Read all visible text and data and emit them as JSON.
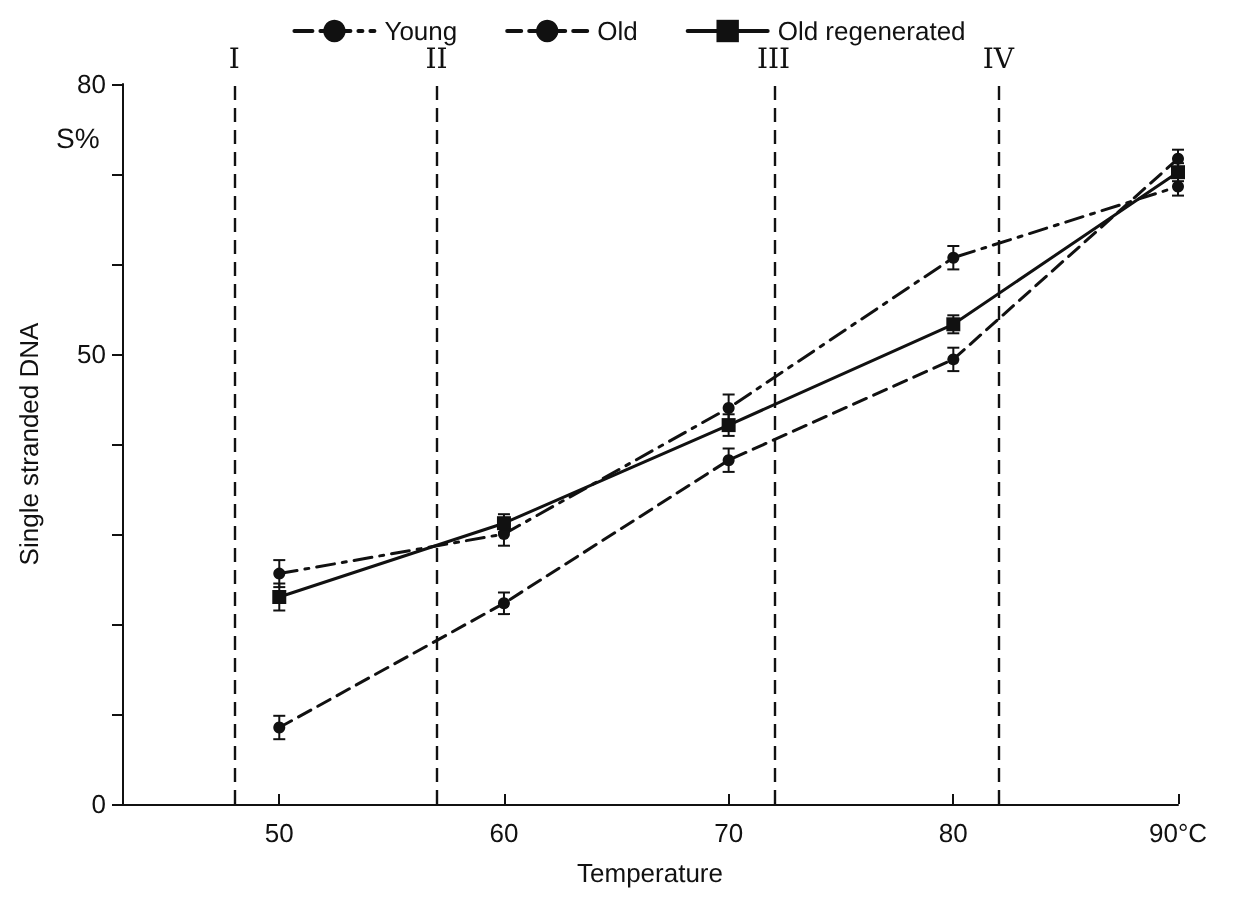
{
  "chart_data": {
    "type": "line",
    "xlabel": "Temperature",
    "ylabel": "Single stranded DNA",
    "annotations": [
      "S%"
    ],
    "x": [
      50,
      60,
      70,
      80,
      90
    ],
    "series": [
      {
        "name": "Young",
        "color": "#111111",
        "marker": "circle",
        "line_style": "dashdot",
        "values": [
          25.6,
          30,
          44,
          60.7,
          68.6
        ],
        "errors": [
          1.5,
          1.3,
          1.5,
          1.3,
          1
        ]
      },
      {
        "name": "Old",
        "color": "#111111",
        "marker": "circle",
        "line_style": "dashed",
        "values": [
          8.5,
          22.3,
          38.2,
          49.4,
          71.7
        ],
        "errors": [
          1.3,
          1.2,
          1.3,
          1.3,
          1
        ]
      },
      {
        "name": "Old regenerated",
        "color": "#111111",
        "marker": "square",
        "line_style": "solid",
        "values": [
          23,
          31.2,
          42.1,
          53.3,
          70.2
        ],
        "errors": [
          1.5,
          1,
          1.2,
          1,
          1
        ]
      }
    ],
    "xlim": [
      43,
      90
    ],
    "xticks": [
      50,
      60,
      70,
      80,
      {
        "value": 90,
        "label": "90°C"
      }
    ],
    "ylim": [
      0,
      80
    ],
    "yticks": [
      0,
      {
        "value": 10,
        "label": null
      },
      {
        "value": 20,
        "label": null
      },
      {
        "value": 30,
        "label": null
      },
      {
        "value": 40,
        "label": null
      },
      50,
      {
        "value": 60,
        "label": null
      },
      {
        "value": 70,
        "label": null
      },
      80
    ],
    "ref_lines": [
      {
        "axis": "x",
        "value": 48,
        "label": "I",
        "line_style": "dashed"
      },
      {
        "axis": "x",
        "value": 57,
        "label": "II",
        "line_style": "dashed"
      },
      {
        "axis": "x",
        "value": 72,
        "label": "III",
        "line_style": "dashed"
      },
      {
        "axis": "x",
        "value": 82,
        "label": "IV",
        "line_style": "dashed"
      }
    ],
    "grid": false,
    "legend": "top"
  }
}
